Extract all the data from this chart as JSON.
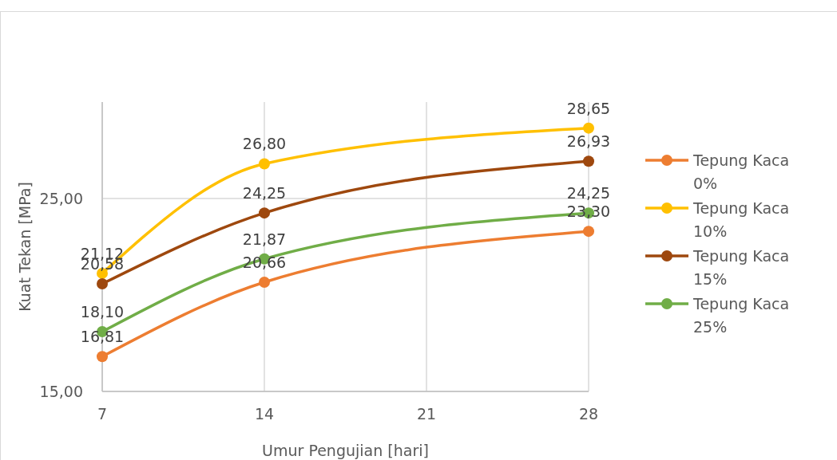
{
  "chart_data": {
    "type": "line",
    "xlabel": "Umur Pengujian [hari]",
    "ylabel": "Kuat Tekan [MPa]",
    "x": [
      7,
      14,
      28
    ],
    "xlim": [
      7,
      28
    ],
    "xticks": [
      7,
      14,
      21,
      28
    ],
    "ylim": [
      15,
      30
    ],
    "yticks": [
      {
        "value": 15,
        "label": "15,00"
      },
      {
        "value": 25,
        "label": "25,00"
      }
    ],
    "grid": true,
    "legend": "right",
    "marker": "circle",
    "series": [
      {
        "name": "Tepung Kaca 0%",
        "color": "#ed7d31",
        "values": [
          16.81,
          20.66,
          23.3
        ],
        "value_labels": [
          "16,81",
          "20,66",
          "23,30"
        ]
      },
      {
        "name": "Tepung Kaca 10%",
        "color": "#ffc000",
        "values": [
          21.12,
          26.8,
          28.65
        ],
        "value_labels": [
          "21,12",
          "26,80",
          "28,65"
        ]
      },
      {
        "name": "Tepung Kaca 15%",
        "color": "#9e480e",
        "values": [
          20.58,
          24.25,
          26.93
        ],
        "value_labels": [
          "20,58",
          "24,25",
          "26,93"
        ]
      },
      {
        "name": "Tepung Kaca 25%",
        "color": "#70ad47",
        "values": [
          18.1,
          21.87,
          24.25
        ],
        "value_labels": [
          "18,10",
          "21,87",
          "24,25"
        ]
      }
    ]
  }
}
